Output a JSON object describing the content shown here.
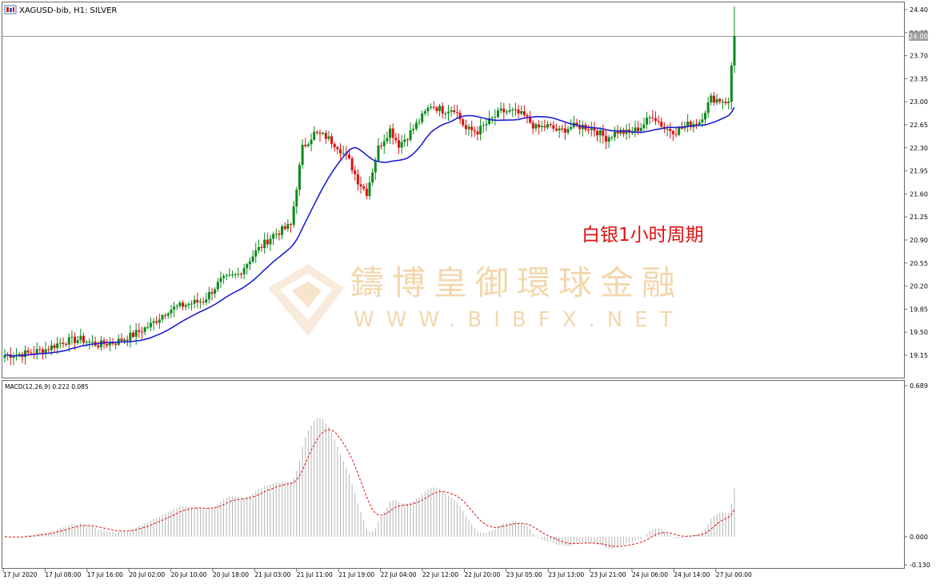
{
  "header": {
    "symbol_label": "XAGUSD-bib, H1:  SILVER",
    "annotation": "白银1小时周期"
  },
  "watermark": {
    "cn": "鑄博皇御環球金融",
    "en": "WWW.BIBFX.NET"
  },
  "current_price_label": "24.00",
  "colors": {
    "bull": "#0a8a1a",
    "bear": "#e01010",
    "ma": "#1f1fd0",
    "macd_hist": "#b4b4b4",
    "macd_signal": "#e01010",
    "annotation": "#e01010",
    "watermark": "#f3d7ad"
  },
  "chart_data": [
    {
      "type": "candlestick",
      "symbol": "XAGUSD-bib",
      "timeframe": "H1",
      "ylim": [
        18.95,
        24.5
      ],
      "y_ticks": [
        "24.40",
        "24.05",
        "23.70",
        "23.35",
        "23.00",
        "22.65",
        "22.30",
        "21.95",
        "21.60",
        "21.25",
        "20.90",
        "20.55",
        "20.20",
        "19.85",
        "19.50",
        "19.15"
      ],
      "x_ticks": [
        "17 Jul 2020",
        "17 Jul 08:00",
        "17 Jul 16:00",
        "20 Jul 02:00",
        "20 Jul 10:00",
        "20 Jul 18:00",
        "21 Jul 03:00",
        "21 Jul 11:00",
        "21 Jul 19:00",
        "22 Jul 04:00",
        "22 Jul 12:00",
        "22 Jul 20:00",
        "23 Jul 05:00",
        "23 Jul 13:00",
        "23 Jul 21:00",
        "24 Jul 06:00",
        "24 Jul 14:00",
        "27 Jul 00:00"
      ],
      "close_anchors": [
        [
          0,
          19.15
        ],
        [
          8,
          19.18
        ],
        [
          14,
          19.24
        ],
        [
          20,
          19.36
        ],
        [
          26,
          19.39
        ],
        [
          32,
          19.31
        ],
        [
          38,
          19.35
        ],
        [
          44,
          19.46
        ],
        [
          50,
          19.61
        ],
        [
          56,
          19.84
        ],
        [
          62,
          19.92
        ],
        [
          68,
          19.98
        ],
        [
          74,
          20.28
        ],
        [
          80,
          20.38
        ],
        [
          86,
          20.72
        ],
        [
          92,
          20.98
        ],
        [
          98,
          21.12
        ],
        [
          102,
          22.3
        ],
        [
          106,
          22.52
        ],
        [
          110,
          22.47
        ],
        [
          114,
          22.33
        ],
        [
          118,
          22.1
        ],
        [
          121,
          21.8
        ],
        [
          124,
          21.62
        ],
        [
          128,
          22.3
        ],
        [
          132,
          22.58
        ],
        [
          135,
          22.35
        ],
        [
          138,
          22.48
        ],
        [
          142,
          22.71
        ],
        [
          146,
          22.95
        ],
        [
          150,
          22.87
        ],
        [
          154,
          22.9
        ],
        [
          158,
          22.58
        ],
        [
          162,
          22.55
        ],
        [
          166,
          22.7
        ],
        [
          170,
          22.85
        ],
        [
          174,
          22.85
        ],
        [
          178,
          22.78
        ],
        [
          182,
          22.6
        ],
        [
          186,
          22.63
        ],
        [
          190,
          22.55
        ],
        [
          194,
          22.62
        ],
        [
          198,
          22.63
        ],
        [
          202,
          22.58
        ],
        [
          206,
          22.45
        ],
        [
          210,
          22.55
        ],
        [
          214,
          22.52
        ],
        [
          218,
          22.62
        ],
        [
          222,
          22.8
        ],
        [
          226,
          22.6
        ],
        [
          230,
          22.55
        ],
        [
          234,
          22.65
        ],
        [
          238,
          22.7
        ],
        [
          242,
          23.05
        ],
        [
          246,
          23.02
        ],
        [
          248,
          23.0
        ],
        [
          249,
          23.55
        ],
        [
          250,
          24.0
        ]
      ],
      "ma_series": {
        "name": "MA",
        "period": 20,
        "type": "sma"
      }
    },
    {
      "type": "macd",
      "label": "MACD(12,26,9) 0.222 0.085",
      "params": [
        12,
        26,
        9
      ],
      "ylim": [
        -0.13,
        0.689
      ],
      "y_ticks": [
        "0.689",
        "0.000",
        "-0.130"
      ]
    }
  ]
}
